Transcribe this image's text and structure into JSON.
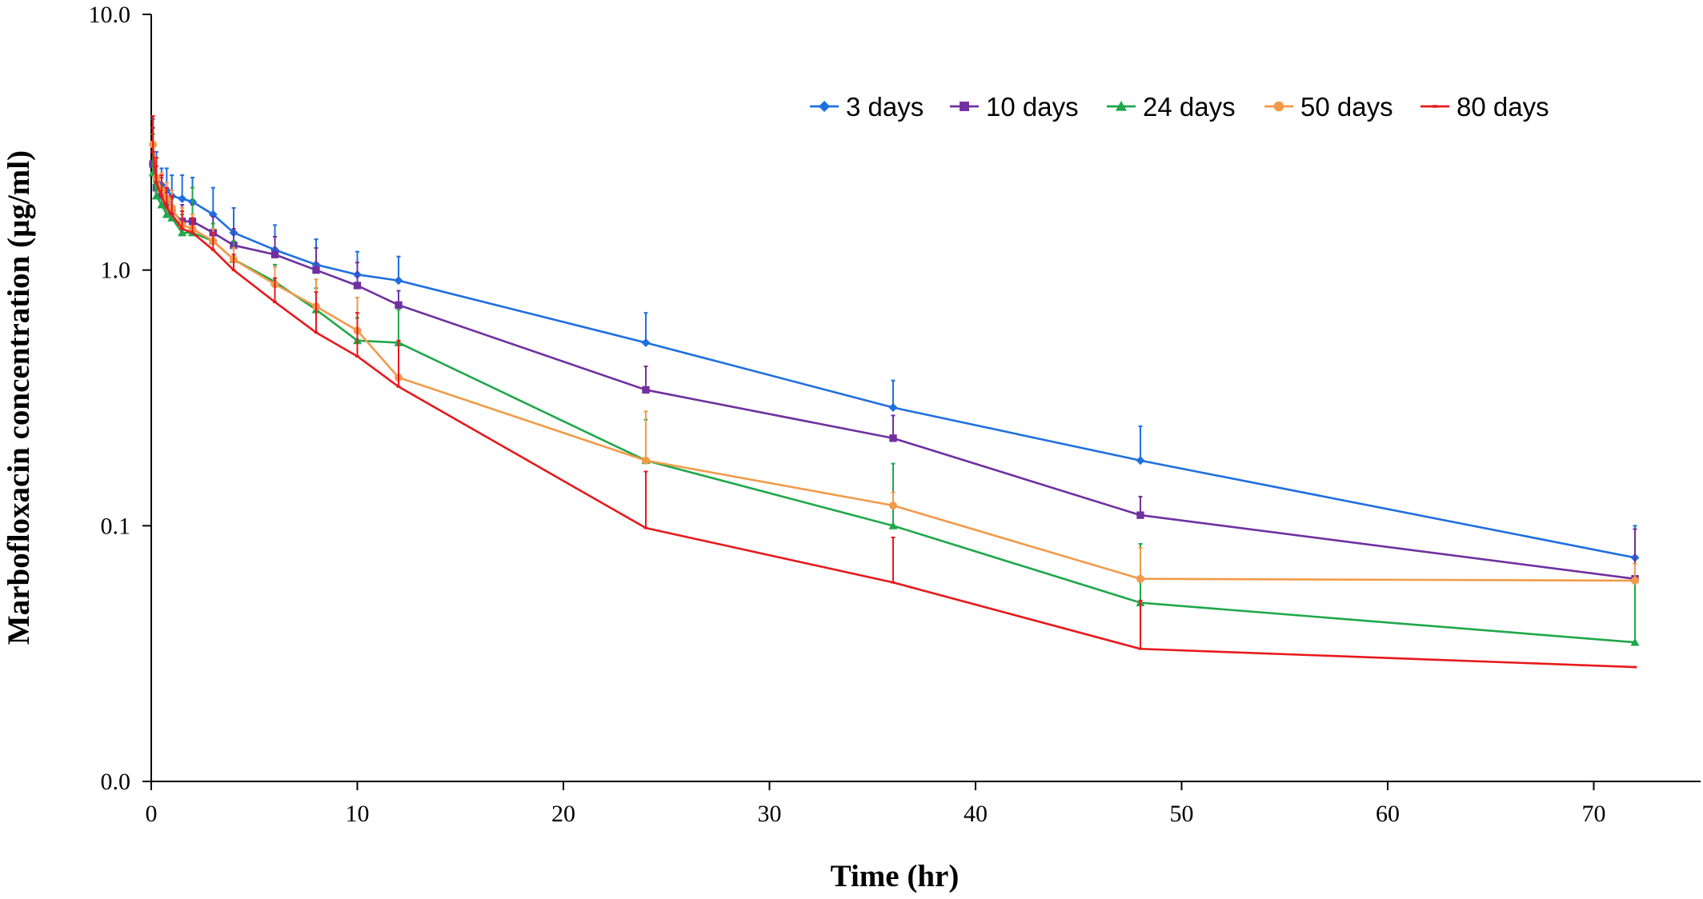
{
  "chart_data": {
    "type": "line",
    "title": "",
    "xlabel": "Time (hr)",
    "ylabel": "Marbofloxacin concentration (µg/ml)",
    "xlim": [
      0,
      75
    ],
    "ylim": [
      0.01,
      10
    ],
    "y_scale": "log",
    "x_ticks": [
      0,
      10,
      20,
      30,
      40,
      50,
      60,
      70
    ],
    "y_ticks": [
      {
        "value": 0.01,
        "label": "0.0"
      },
      {
        "value": 0.1,
        "label": "0.1"
      },
      {
        "value": 1,
        "label": "1.0"
      },
      {
        "value": 10,
        "label": "10.0"
      }
    ],
    "grid": false,
    "legend_position": "top-right",
    "series": [
      {
        "name": "3 days",
        "color": "#1F6FE0",
        "marker": "diamond",
        "x": [
          0.083,
          0.25,
          0.5,
          0.75,
          1,
          1.5,
          2,
          3,
          4,
          6,
          8,
          10,
          12,
          24,
          36,
          48,
          72
        ],
        "y": [
          2.6,
          2.3,
          2.15,
          2.05,
          1.95,
          1.9,
          1.85,
          1.65,
          1.4,
          1.2,
          1.05,
          0.96,
          0.91,
          0.52,
          0.29,
          0.18,
          0.075
        ],
        "err": [
          1.3,
          0.6,
          0.35,
          0.45,
          0.4,
          0.45,
          0.45,
          0.45,
          0.35,
          0.3,
          0.27,
          0.22,
          0.22,
          0.16,
          0.08,
          0.065,
          0.025
        ]
      },
      {
        "name": "10 days",
        "color": "#7030A0",
        "marker": "square",
        "x": [
          0.083,
          0.25,
          0.5,
          0.75,
          1,
          1.5,
          2,
          3,
          4,
          6,
          8,
          10,
          12,
          24,
          36,
          48,
          72
        ],
        "y": [
          2.6,
          2.1,
          1.95,
          1.8,
          1.7,
          1.55,
          1.55,
          1.4,
          1.25,
          1.15,
          1.0,
          0.87,
          0.73,
          0.34,
          0.22,
          0.11,
          0.062
        ],
        "err": [
          1.0,
          0.45,
          0.35,
          0.3,
          0.25,
          0.25,
          0.25,
          0.22,
          0.2,
          0.2,
          0.22,
          0.2,
          0.1,
          0.08,
          0.05,
          0.02,
          0.035
        ]
      },
      {
        "name": "24 days",
        "color": "#1FA84A",
        "marker": "triangle",
        "x": [
          0.083,
          0.25,
          0.5,
          0.75,
          1,
          1.5,
          2,
          3,
          4,
          6,
          8,
          10,
          12,
          24,
          36,
          48,
          72
        ],
        "y": [
          2.4,
          1.95,
          1.8,
          1.65,
          1.6,
          1.4,
          1.4,
          1.3,
          1.1,
          0.9,
          0.7,
          0.53,
          0.52,
          0.18,
          0.1,
          0.05,
          0.035
        ],
        "err": [
          1.0,
          0.35,
          0.3,
          0.25,
          0.3,
          0.25,
          0.7,
          0.22,
          0.2,
          0.15,
          0.15,
          0.12,
          0.18,
          0.08,
          0.075,
          0.035,
          0.025
        ]
      },
      {
        "name": "50 days",
        "color": "#F29A4A",
        "marker": "circle",
        "x": [
          0.083,
          0.25,
          0.5,
          0.75,
          1,
          1.5,
          2,
          3,
          4,
          6,
          8,
          10,
          12,
          24,
          36,
          48,
          72
        ],
        "y": [
          3.1,
          2.3,
          2.05,
          1.9,
          1.75,
          1.5,
          1.45,
          1.3,
          1.1,
          0.88,
          0.72,
          0.58,
          0.38,
          0.18,
          0.12,
          0.062,
          0.061
        ],
        "err": [
          0.9,
          0.45,
          0.35,
          0.3,
          0.3,
          0.25,
          0.2,
          0.15,
          0.12,
          0.15,
          0.2,
          0.2,
          0.15,
          0.1,
          0.015,
          0.02,
          0.01
        ]
      },
      {
        "name": "80 days",
        "color": "#E8191C",
        "marker": "dash",
        "x": [
          0.083,
          0.25,
          0.5,
          0.75,
          1,
          1.5,
          2,
          3,
          4,
          6,
          8,
          10,
          12,
          24,
          36,
          48,
          72
        ],
        "y": [
          2.9,
          2.2,
          1.95,
          1.75,
          1.65,
          1.45,
          1.4,
          1.2,
          1.0,
          0.75,
          0.57,
          0.46,
          0.35,
          0.098,
          0.06,
          0.033,
          0.028
        ],
        "err": [
          1.1,
          0.55,
          0.4,
          0.35,
          0.3,
          0.25,
          0.2,
          0.2,
          0.15,
          0.18,
          0.25,
          0.22,
          0.18,
          0.065,
          0.03,
          0.018,
          0
        ]
      }
    ]
  }
}
